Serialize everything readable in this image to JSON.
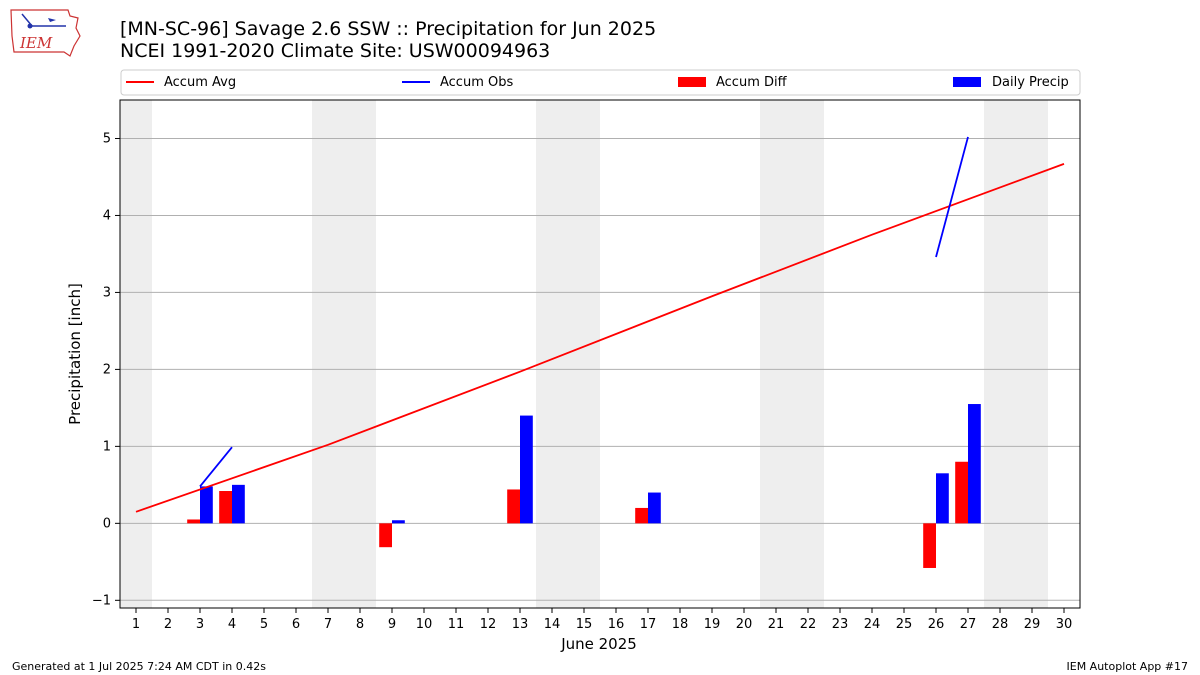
{
  "title_line1": "[MN-SC-96] Savage 2.6 SSW :: Precipitation for Jun 2025",
  "title_line2": "NCEI 1991-2020 Climate Site: USW00094963",
  "logo_text": "IEM",
  "footer_left": "Generated at 1 Jul 2025 7:24 AM CDT in 0.42s",
  "footer_right": "IEM Autoplot App #17",
  "colors": {
    "avg": "#ff0000",
    "obs": "#0000ff",
    "diff": "#ff0000",
    "daily": "#0000ff",
    "weekend": "#eeeeee"
  },
  "chart_data": {
    "type": "bar",
    "xlabel": "June 2025",
    "ylabel": "Precipitation [inch]",
    "xlim": [
      0.5,
      30.5
    ],
    "ylim": [
      -1.1,
      5.5
    ],
    "yticks": [
      -1,
      0,
      1,
      2,
      3,
      4,
      5
    ],
    "x": [
      1,
      2,
      3,
      4,
      5,
      6,
      7,
      8,
      9,
      10,
      11,
      12,
      13,
      14,
      15,
      16,
      17,
      18,
      19,
      20,
      21,
      22,
      23,
      24,
      25,
      26,
      27,
      28,
      29,
      30
    ],
    "weekend_spans": [
      [
        0.5,
        1.5
      ],
      [
        6.5,
        8.5
      ],
      [
        13.5,
        15.5
      ],
      [
        20.5,
        22.5
      ],
      [
        27.5,
        29.5
      ]
    ],
    "grid": "y",
    "legend_position": "top",
    "series": [
      {
        "name": "Accum Avg",
        "kind": "line",
        "x": [
          1,
          7,
          13,
          19,
          24,
          30
        ],
        "values": [
          0.15,
          1.02,
          1.97,
          2.95,
          3.75,
          4.67
        ]
      },
      {
        "name": "Accum Obs",
        "kind": "line",
        "segments": [
          {
            "x": [
              3,
              4
            ],
            "values": [
              0.48,
              0.99
            ]
          },
          {
            "x": [
              26,
              27
            ],
            "values": [
              3.46,
              5.02
            ]
          }
        ]
      },
      {
        "name": "Accum Diff",
        "kind": "bar",
        "x": [
          3,
          4,
          9,
          13,
          17,
          26,
          27
        ],
        "values": [
          0.05,
          0.42,
          -0.31,
          0.44,
          0.2,
          -0.58,
          0.8
        ]
      },
      {
        "name": "Daily Precip",
        "kind": "bar",
        "x": [
          3,
          4,
          9,
          13,
          17,
          26,
          27
        ],
        "values": [
          0.48,
          0.5,
          0.04,
          1.4,
          0.4,
          0.65,
          1.55
        ]
      }
    ]
  }
}
